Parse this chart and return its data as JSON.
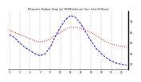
{
  "title": "Milwaukee Outdoor Temp (vs) THSW Index per Hour (Last 24 Hours)",
  "hours": [
    0,
    1,
    2,
    3,
    4,
    5,
    6,
    7,
    8,
    9,
    10,
    11,
    12,
    13,
    14,
    15,
    16,
    17,
    18,
    19,
    20,
    21,
    22,
    23
  ],
  "temp": [
    62,
    60,
    58,
    56,
    54,
    52,
    51,
    52,
    54,
    57,
    60,
    63,
    65,
    65,
    64,
    62,
    60,
    57,
    54,
    51,
    49,
    48,
    47,
    46
  ],
  "thsw": [
    58,
    55,
    50,
    46,
    43,
    40,
    38,
    40,
    46,
    56,
    65,
    72,
    76,
    74,
    68,
    60,
    52,
    45,
    40,
    36,
    33,
    31,
    30,
    29
  ],
  "temp_color": "#cc0000",
  "thsw_color": "#0000cc",
  "bg_color": "#ffffff",
  "grid_color": "#888888",
  "ylim_min": 25,
  "ylim_max": 80,
  "ytick_vals": [
    30,
    40,
    50,
    60,
    70
  ],
  "ytick_labels": [
    "30",
    "40",
    "50",
    "60",
    "70"
  ],
  "xtick_vals": [
    0,
    2,
    4,
    6,
    8,
    10,
    12,
    14,
    16,
    18,
    20,
    22
  ],
  "xtick_labels": [
    "0",
    "2",
    "4",
    "6",
    "8",
    "10",
    "12",
    "14",
    "16",
    "18",
    "20",
    "22"
  ],
  "vgrid_positions": [
    0,
    2,
    4,
    6,
    8,
    10,
    12,
    14,
    16,
    18,
    20,
    22
  ]
}
